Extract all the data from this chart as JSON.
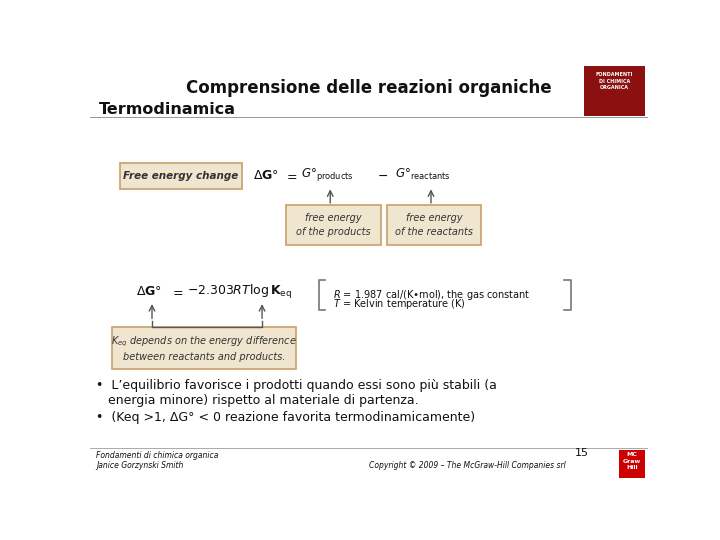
{
  "title": "Comprensione delle reazioni organiche",
  "subtitle": "Termodinamica",
  "bg_color": "#ffffff",
  "box_fill": "#f0e6d0",
  "box_edge": "#c8a068",
  "text_color": "#111111",
  "dark_text": "#333333",
  "bullet1_line1": "•  L’equilibrio favorisce i prodotti quando essi sono più stabili (a",
  "bullet1_line2": "   energia minore) rispetto al materiale di partenza.",
  "bullet2": "•  (Keq >1, ΔG° < 0 reazione favorita termodinamicamente)",
  "footer_left1": "Fondamenti di chimica organica",
  "footer_left2": "Janice Gorzynski Smith",
  "footer_right": "Copyright © 2009 – The McGraw-Hill Companies srl",
  "page_number": "15",
  "arrow_color": "#555555",
  "line_color": "#888888",
  "bracket_color": "#777777"
}
